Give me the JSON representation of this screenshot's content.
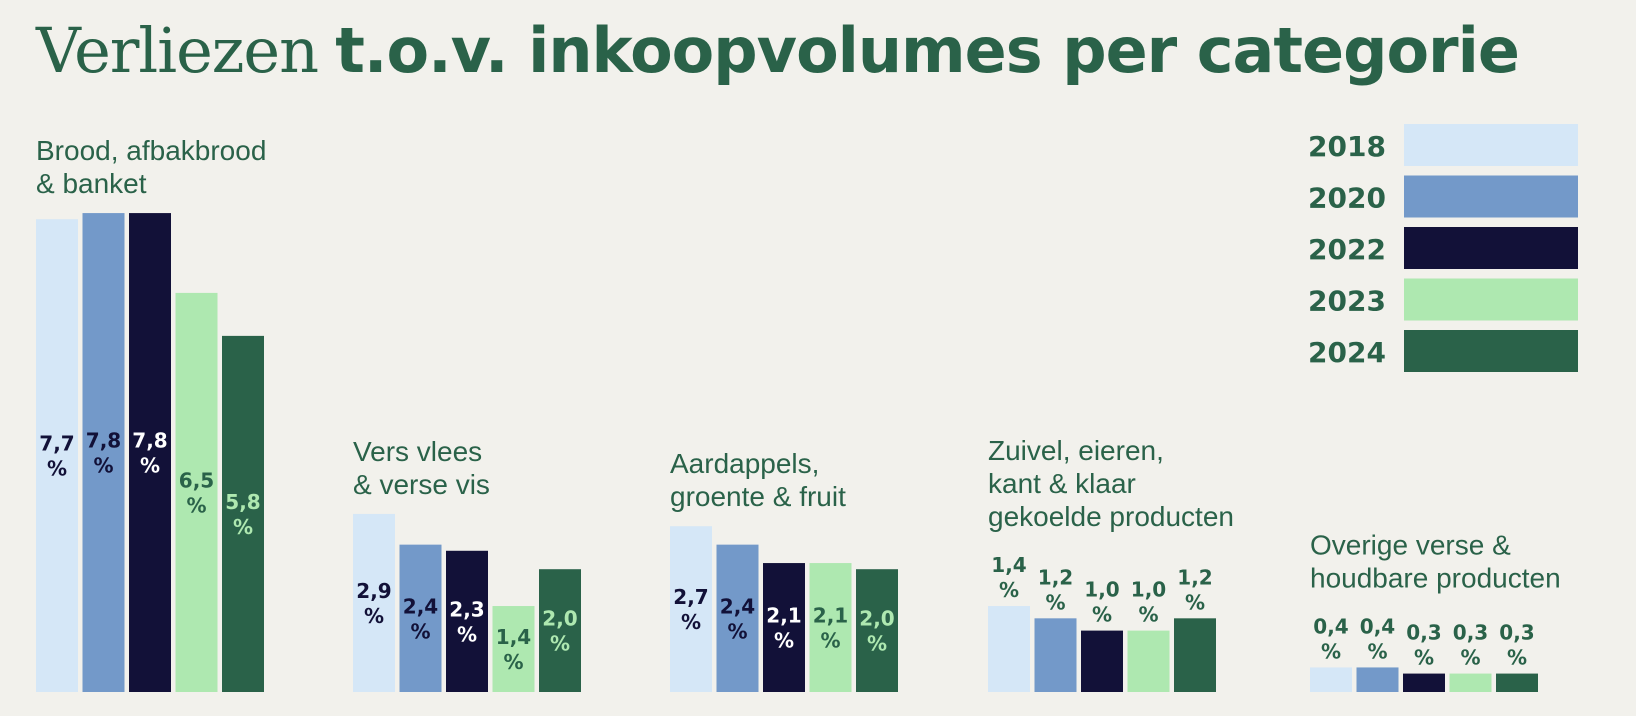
{
  "title": {
    "light": "Verliezen",
    "bold": "t.o.v. inkoopvolumes per categorie"
  },
  "chart_data": {
    "type": "bar",
    "unit": "%",
    "ylim": [
      0,
      8
    ],
    "legend_position": "top-right",
    "categories": [
      [
        "Brood, afbakbrood",
        "& banket"
      ],
      [
        "Vers vlees",
        "& verse vis"
      ],
      [
        "Aardappels,",
        "groente & fruit"
      ],
      [
        "Zuivel, eieren,",
        "kant & klaar",
        "gekoelde producten"
      ],
      [
        "Overige verse &",
        "houdbare producten"
      ]
    ],
    "series": [
      {
        "name": "2018",
        "color": "#d5e7f7",
        "label_color": "#121138",
        "values": [
          7.7,
          2.9,
          2.7,
          1.4,
          0.4
        ]
      },
      {
        "name": "2020",
        "color": "#7399c9",
        "label_color": "#121138",
        "values": [
          7.8,
          2.4,
          2.4,
          1.2,
          0.4
        ]
      },
      {
        "name": "2022",
        "color": "#121138",
        "label_color": "#ffffff",
        "values": [
          7.8,
          2.3,
          2.1,
          1.0,
          0.3
        ]
      },
      {
        "name": "2023",
        "color": "#aee8b0",
        "label_color": "#2a6249",
        "values": [
          6.5,
          1.4,
          2.1,
          1.0,
          0.3
        ]
      },
      {
        "name": "2024",
        "color": "#2a6249",
        "label_color": "#aee8b0",
        "values": [
          5.8,
          2.0,
          2.0,
          1.2,
          0.3
        ]
      }
    ],
    "value_labels": [
      [
        "7,7",
        "7,8",
        "7,8",
        "6,5",
        "5,8"
      ],
      [
        "2,9",
        "2,4",
        "2,3",
        "1,4",
        "2,0"
      ],
      [
        "2,7",
        "2,4",
        "2,1",
        "2,1",
        "2,0"
      ],
      [
        "1,4",
        "1,2",
        "1,0",
        "1,0",
        "1,2"
      ],
      [
        "0,4",
        "0,4",
        "0,3",
        "0,3",
        "0,3"
      ]
    ]
  }
}
